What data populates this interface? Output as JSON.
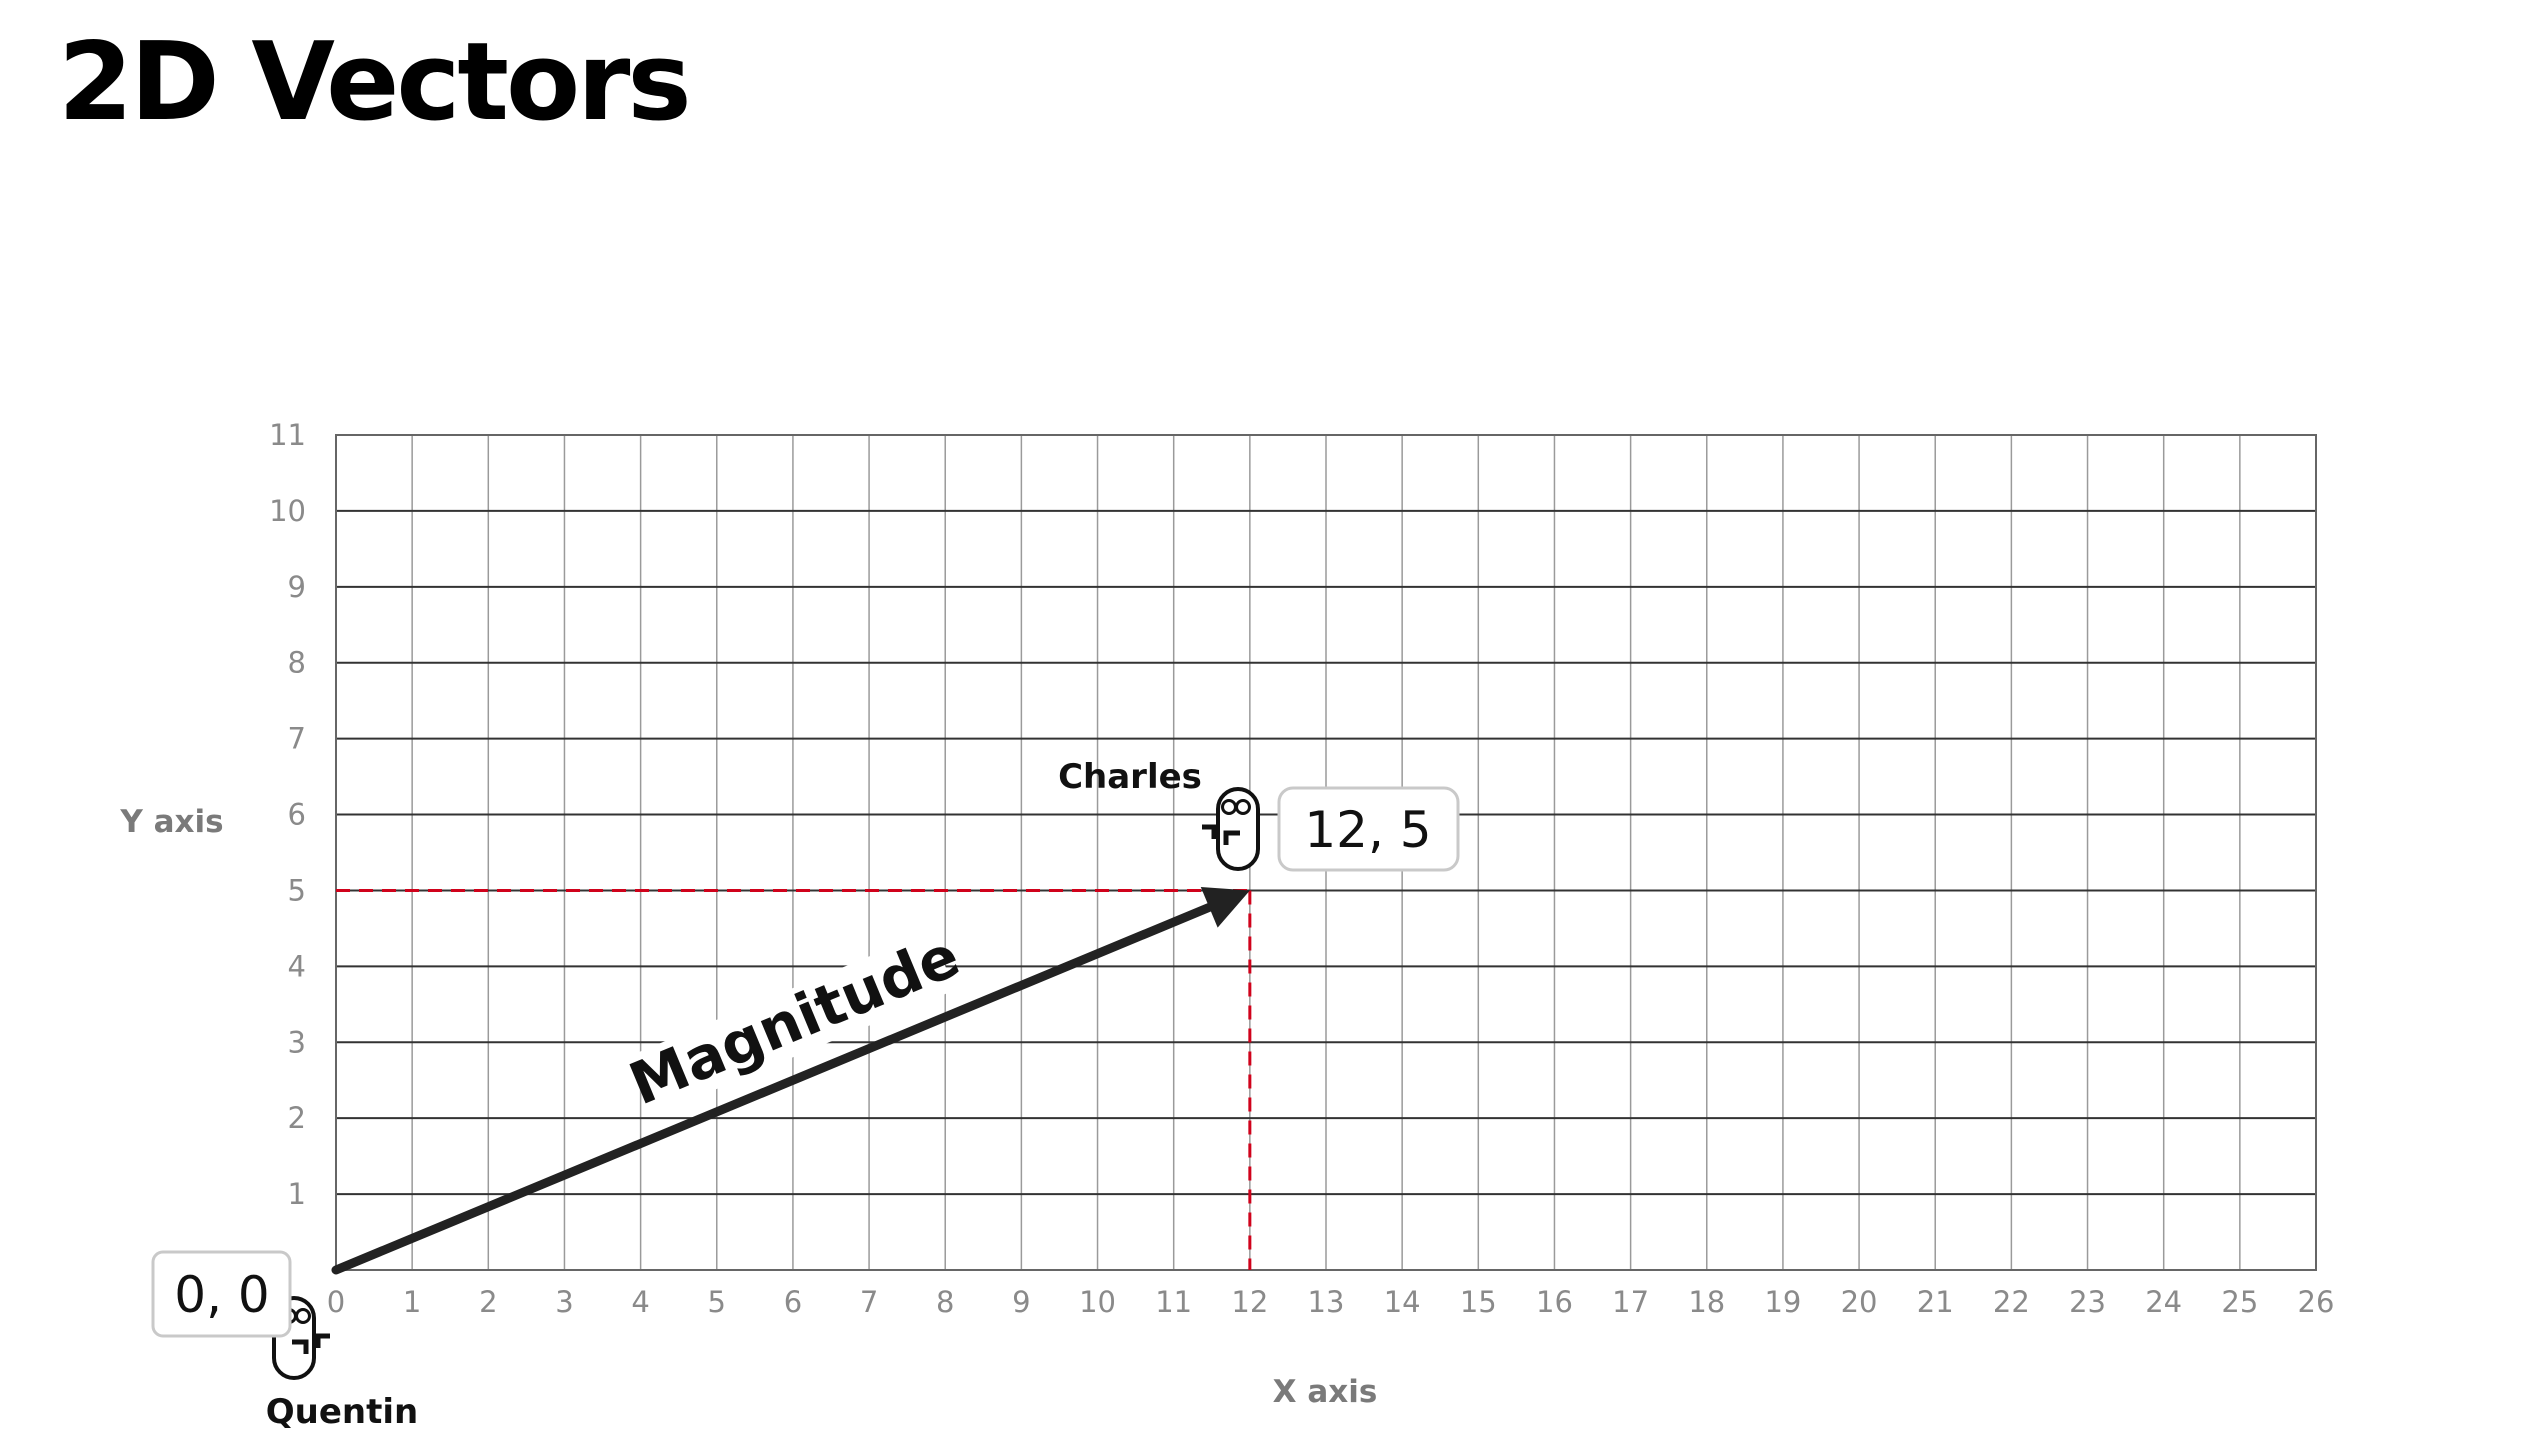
{
  "title": "2D Vectors",
  "chart_data": {
    "type": "scatter",
    "xlabel": "X axis",
    "ylabel": "Y axis",
    "xlim": [
      0,
      26
    ],
    "ylim": [
      0,
      11
    ],
    "x_ticks": [
      "0",
      "1",
      "2",
      "3",
      "4",
      "5",
      "6",
      "7",
      "8",
      "9",
      "10",
      "11",
      "12",
      "13",
      "14",
      "15",
      "16",
      "17",
      "18",
      "19",
      "20",
      "21",
      "22",
      "23",
      "24",
      "25",
      "26"
    ],
    "y_ticks": [
      "1",
      "2",
      "3",
      "4",
      "5",
      "6",
      "7",
      "8",
      "9",
      "10",
      "11"
    ],
    "grid": true,
    "points": [
      {
        "name": "Quentin",
        "label": "0, 0",
        "x": 0,
        "y": 0
      },
      {
        "name": "Charles",
        "label": "12, 5",
        "x": 12,
        "y": 5
      }
    ],
    "vector": {
      "from": [
        0,
        0
      ],
      "to": [
        12,
        5
      ],
      "label": "Magnitude"
    },
    "guide_color": "#d0021b",
    "vector_color": "#222222",
    "grid_color": "#333333"
  }
}
